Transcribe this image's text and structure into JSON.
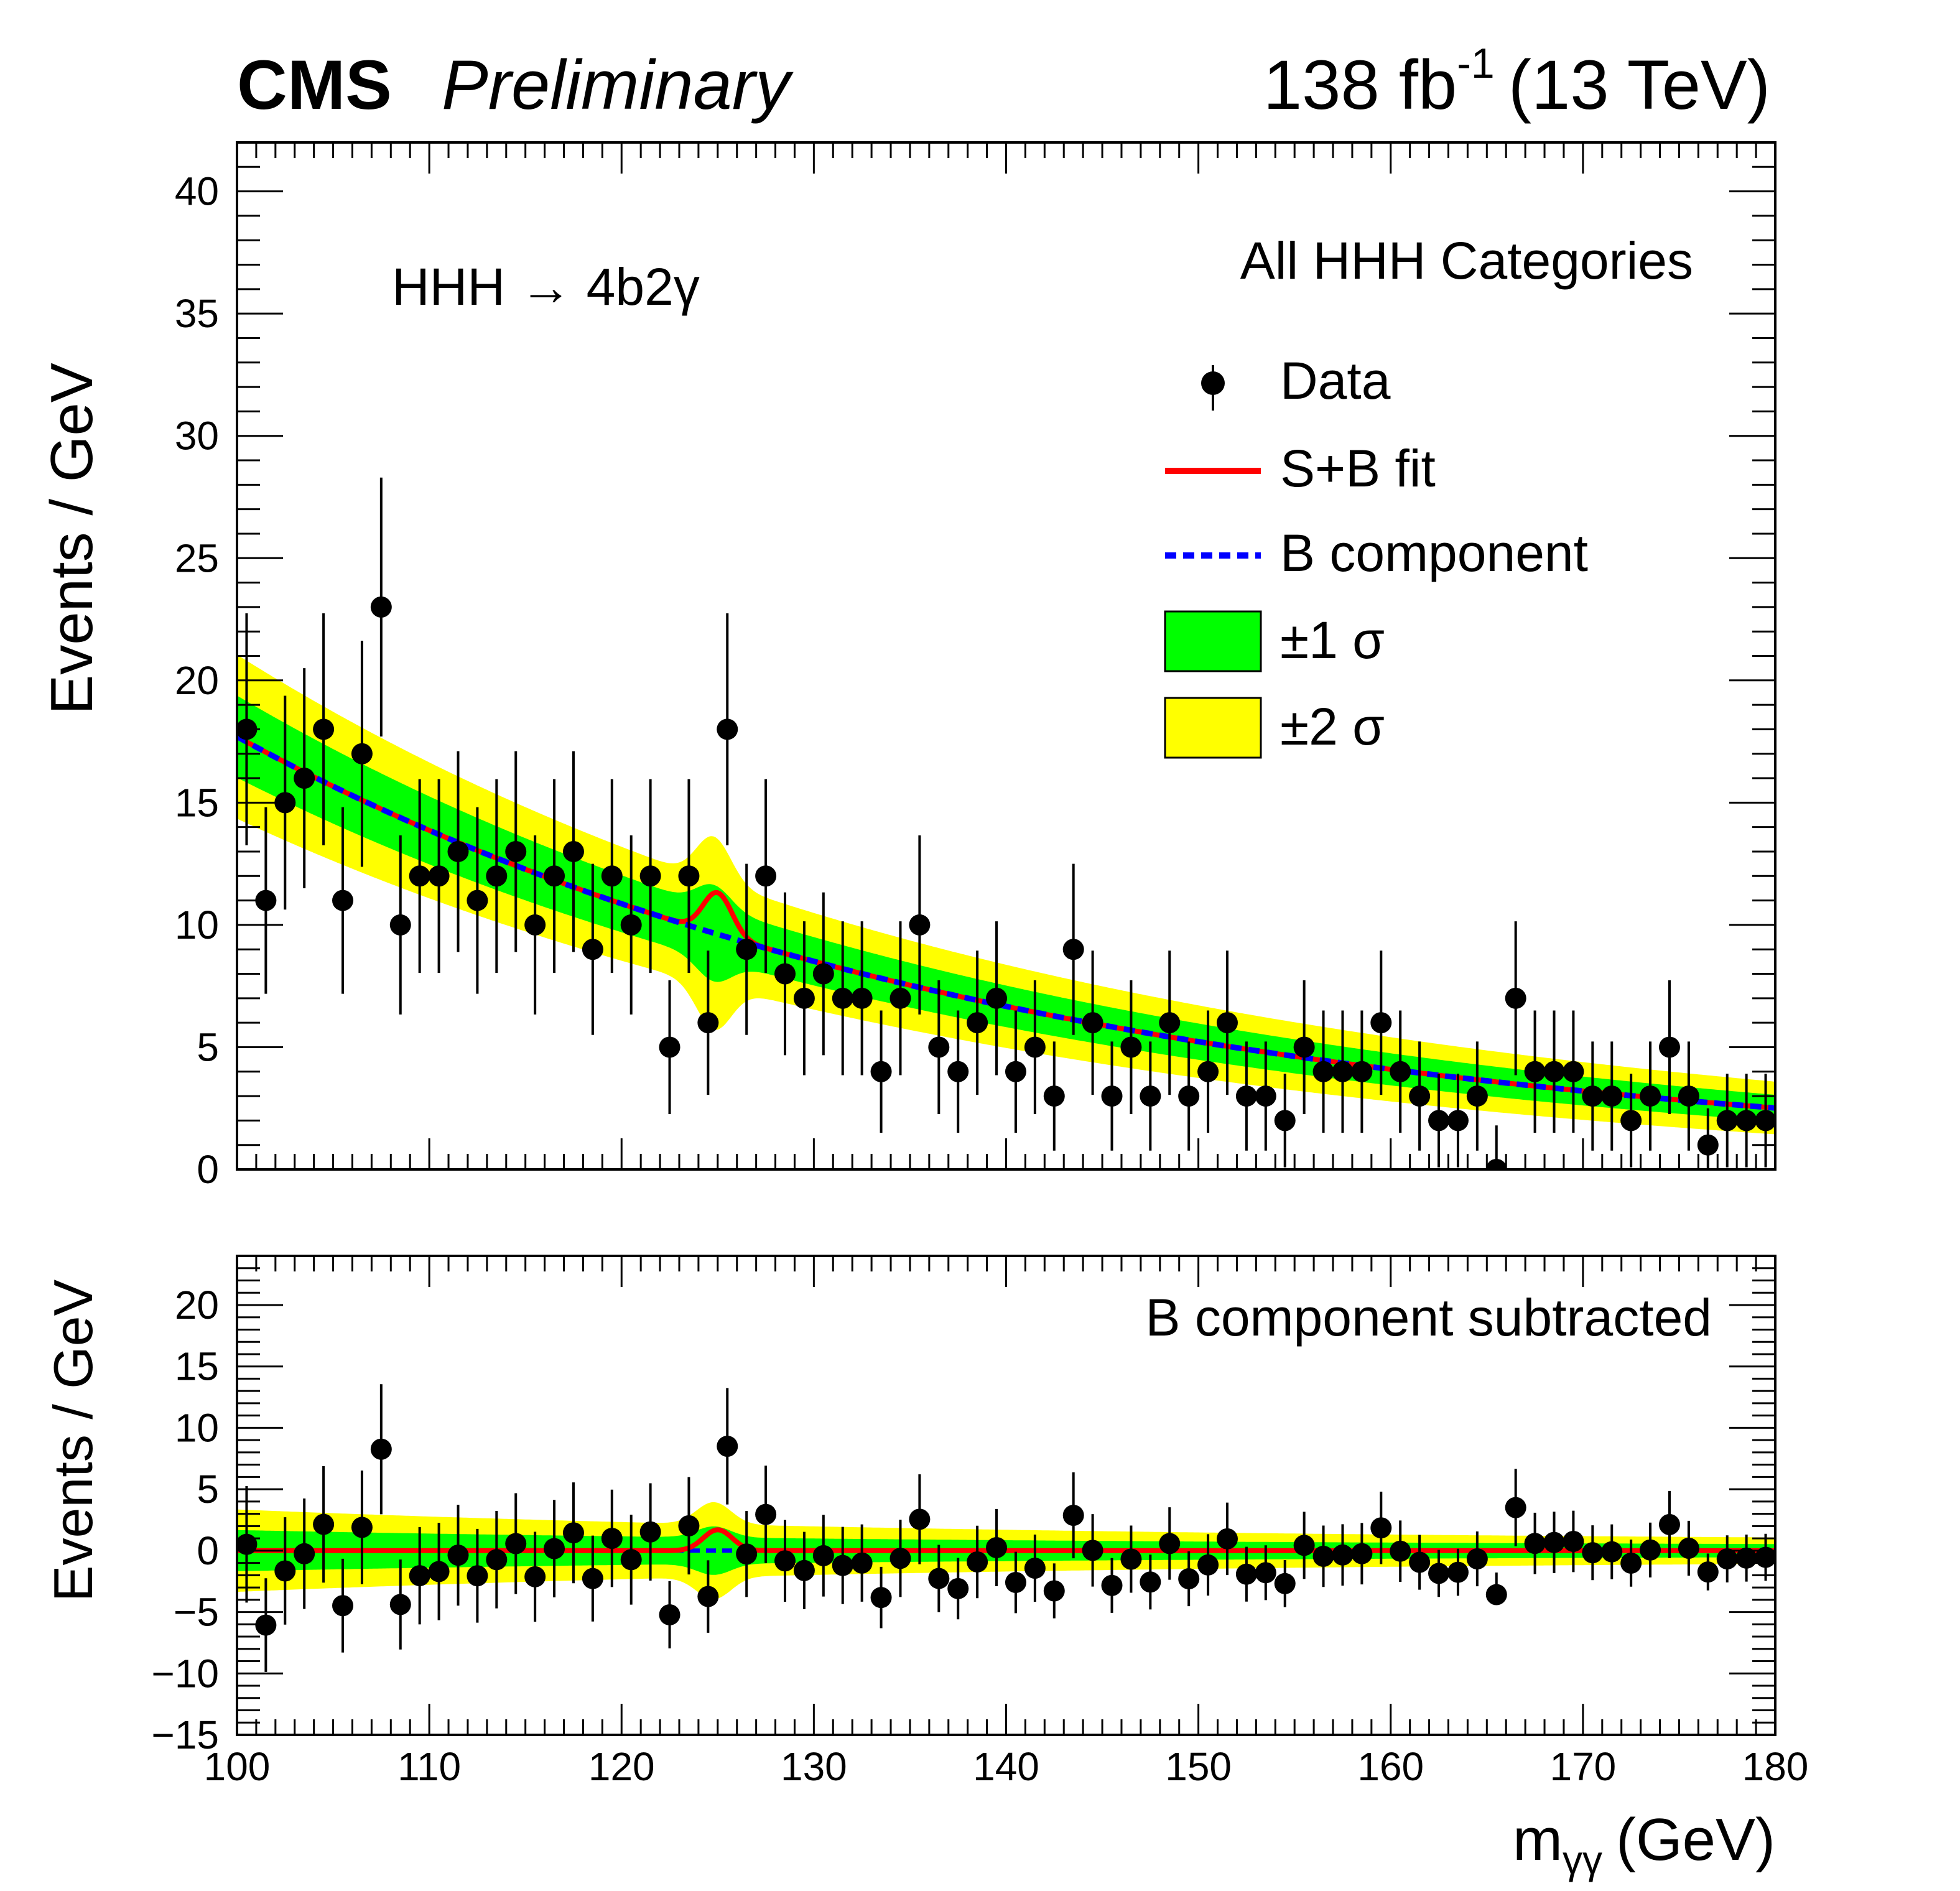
{
  "header": {
    "experiment": "CMS",
    "status": "Preliminary",
    "lumi": "138 fb",
    "lumi_exp": "-1",
    "energy": "(13 TeV)"
  },
  "colors": {
    "band1": "#00ff00",
    "band2": "#ffff00",
    "sb_fit": "#ff0000",
    "b_component": "#0000ff",
    "data": "#000000"
  },
  "chart_data": [
    {
      "type": "scatter",
      "title": "",
      "channel": "HHH → 4b2γ",
      "category": "All HHH Categories",
      "xlabel": "m",
      "xlabel_sub": "γγ",
      "xlabel_unit": "(GeV)",
      "ylabel": "Events / GeV",
      "xlim": [
        100,
        180
      ],
      "ylim": [
        0,
        42
      ],
      "xticks": [
        100,
        110,
        120,
        130,
        140,
        150,
        160,
        170,
        180
      ],
      "yticks": [
        0,
        5,
        10,
        15,
        20,
        25,
        30,
        35,
        40
      ],
      "legend": {
        "data": "Data",
        "sb": "S+B fit",
        "b": "B component",
        "band1": "±1 σ",
        "band2": "±2 σ"
      },
      "x": [
        100.5,
        101.5,
        102.5,
        103.5,
        104.5,
        105.5,
        106.5,
        107.5,
        108.5,
        109.5,
        110.5,
        111.5,
        112.5,
        113.5,
        114.5,
        115.5,
        116.5,
        117.5,
        118.5,
        119.5,
        120.5,
        121.5,
        122.5,
        123.5,
        124.5,
        125.5,
        126.5,
        127.5,
        128.5,
        129.5,
        130.5,
        131.5,
        132.5,
        133.5,
        134.5,
        135.5,
        136.5,
        137.5,
        138.5,
        139.5,
        140.5,
        141.5,
        142.5,
        143.5,
        144.5,
        145.5,
        146.5,
        147.5,
        148.5,
        149.5,
        150.5,
        151.5,
        152.5,
        153.5,
        154.5,
        155.5,
        156.5,
        157.5,
        158.5,
        159.5,
        160.5,
        161.5,
        162.5,
        163.5,
        164.5,
        165.5,
        166.5,
        167.5,
        168.5,
        169.5,
        170.5,
        171.5,
        172.5,
        173.5,
        174.5,
        175.5,
        176.5,
        177.5,
        178.5,
        179.5
      ],
      "y": [
        18,
        11,
        15,
        16,
        18,
        11,
        17,
        23,
        10,
        12,
        12,
        13,
        11,
        12,
        13,
        10,
        12,
        13,
        9,
        12,
        10,
        12,
        5,
        12,
        6,
        18,
        9,
        12,
        8,
        7,
        8,
        7,
        7,
        4,
        7,
        10,
        5,
        4,
        6,
        7,
        4,
        5,
        3,
        9,
        6,
        3,
        5,
        3,
        6,
        3,
        4,
        6,
        3,
        3,
        2,
        5,
        4,
        4,
        4,
        6,
        4,
        3,
        2,
        2,
        3,
        0,
        7,
        4,
        4,
        4,
        3,
        3,
        2,
        3,
        5,
        3,
        1,
        2,
        2,
        2
      ],
      "background_model": "B(m) = 17.7 * exp(-0.0244 * (m - 100))",
      "signal_peak": {
        "mass": 125,
        "height": 1.7,
        "width": 0.75
      }
    },
    {
      "type": "scatter",
      "title": "",
      "category": "B component subtracted",
      "xlabel": "m",
      "xlabel_sub": "γγ",
      "xlabel_unit": "(GeV)",
      "ylabel": "Events / GeV",
      "xlim": [
        100,
        180
      ],
      "ylim": [
        -15,
        24
      ],
      "xticks": [
        100,
        110,
        120,
        130,
        140,
        150,
        160,
        170,
        180
      ],
      "xticklabels": [
        "100",
        "110",
        "120",
        "130",
        "140",
        "150",
        "160",
        "170",
        "180"
      ],
      "yticks": [
        -15,
        -10,
        -5,
        0,
        5,
        10,
        15,
        20
      ],
      "yticklabels": [
        "−15",
        "−10",
        "−5",
        "0",
        "5",
        "10",
        "15",
        "20"
      ],
      "note": "residuals = data - B component"
    }
  ]
}
